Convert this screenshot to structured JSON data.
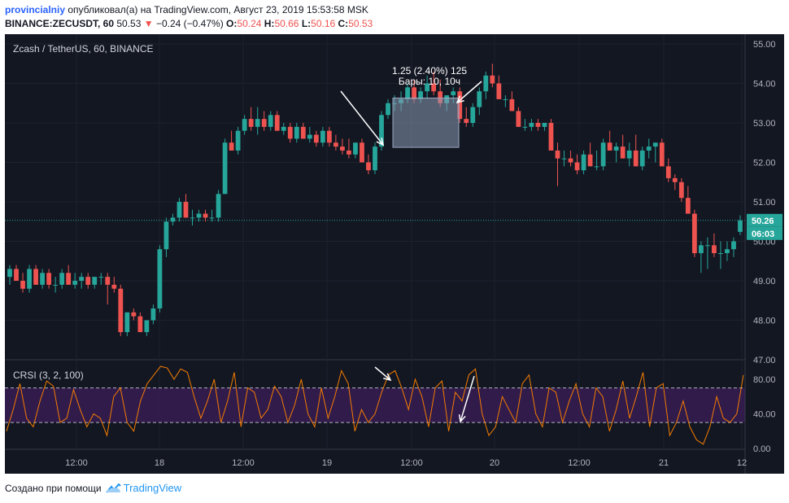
{
  "header": {
    "user": "provincialniy",
    "published_text": "опубликовал(а) на TradingView.com, Август 23, 2019 15:53:58 MSK",
    "symbol_line": "BINANCE:ZECUSDT, 60",
    "last": "50.53",
    "change": "−0.24 (−0.47%)",
    "o_label": "O:",
    "o": "50.24",
    "h_label": "H:",
    "h": "50.66",
    "l_label": "L:",
    "l": "50.16",
    "c_label": "C:",
    "c": "50.53"
  },
  "chart_data": {
    "type": "candlestick",
    "title": "Zcash / TetherUS, 60, BINANCE",
    "y_ticks": [
      "55.00",
      "54.00",
      "53.00",
      "52.00",
      "51.00",
      "50.00",
      "49.00",
      "48.00",
      "47.00"
    ],
    "ylim": [
      47,
      55.2
    ],
    "x_ticks": [
      "12:00",
      "18",
      "12:00",
      "19",
      "12:00",
      "20",
      "12:00",
      "21",
      "12"
    ],
    "price_label": "50.26",
    "countdown_label": "06:03",
    "current_price_line": 50.53,
    "measure_annotation": {
      "line1": "1.25 (2.40%) 125",
      "line2": "Бары: 10, 10ч"
    },
    "candles_ohlc": [
      [
        49.1,
        49.4,
        48.9,
        49.3
      ],
      [
        49.3,
        49.4,
        49.0,
        49.0
      ],
      [
        49.0,
        49.2,
        48.7,
        48.8
      ],
      [
        48.8,
        49.4,
        48.7,
        49.3
      ],
      [
        49.3,
        49.4,
        48.9,
        48.9
      ],
      [
        48.9,
        49.3,
        48.8,
        49.2
      ],
      [
        49.2,
        49.3,
        48.8,
        48.9
      ],
      [
        48.9,
        49.1,
        48.7,
        48.9
      ],
      [
        48.9,
        49.3,
        48.8,
        49.2
      ],
      [
        49.2,
        49.4,
        48.9,
        48.9
      ],
      [
        48.9,
        49.2,
        48.8,
        49.0
      ],
      [
        49.0,
        49.2,
        48.8,
        49.1
      ],
      [
        49.1,
        49.2,
        48.8,
        48.9
      ],
      [
        48.9,
        49.1,
        48.8,
        49.1
      ],
      [
        49.1,
        49.2,
        48.9,
        49.1
      ],
      [
        49.1,
        49.2,
        48.4,
        48.9
      ],
      [
        48.9,
        49.1,
        48.7,
        48.8
      ],
      [
        48.8,
        48.9,
        47.6,
        47.7
      ],
      [
        47.7,
        48.2,
        47.6,
        48.2
      ],
      [
        48.2,
        48.3,
        48.0,
        48.1
      ],
      [
        48.1,
        48.2,
        47.7,
        47.7
      ],
      [
        47.7,
        48.0,
        47.6,
        48.0
      ],
      [
        48.0,
        48.4,
        47.9,
        48.3
      ],
      [
        48.3,
        49.9,
        48.2,
        49.8
      ],
      [
        49.8,
        50.6,
        49.6,
        50.5
      ],
      [
        50.5,
        50.7,
        50.4,
        50.6
      ],
      [
        50.6,
        51.1,
        50.5,
        51.0
      ],
      [
        51.0,
        51.2,
        50.6,
        50.6
      ],
      [
        50.6,
        50.8,
        50.4,
        50.6
      ],
      [
        50.6,
        50.8,
        50.5,
        50.7
      ],
      [
        50.7,
        50.8,
        50.5,
        50.6
      ],
      [
        50.6,
        50.8,
        50.5,
        50.6
      ],
      [
        50.6,
        51.3,
        50.5,
        51.2
      ],
      [
        51.2,
        52.6,
        51.2,
        52.5
      ],
      [
        52.5,
        52.8,
        52.3,
        52.3
      ],
      [
        52.3,
        52.9,
        52.2,
        52.8
      ],
      [
        52.8,
        53.2,
        52.7,
        53.1
      ],
      [
        53.1,
        53.4,
        52.8,
        52.9
      ],
      [
        52.9,
        53.4,
        52.7,
        53.1
      ],
      [
        53.1,
        53.3,
        52.8,
        52.9
      ],
      [
        52.9,
        53.3,
        52.8,
        53.2
      ],
      [
        53.2,
        53.3,
        52.8,
        52.8
      ],
      [
        52.8,
        53.0,
        52.7,
        52.9
      ],
      [
        52.9,
        53.0,
        52.5,
        52.6
      ],
      [
        52.6,
        53.0,
        52.5,
        52.9
      ],
      [
        52.9,
        53.0,
        52.6,
        52.6
      ],
      [
        52.6,
        52.9,
        52.5,
        52.7
      ],
      [
        52.7,
        52.8,
        52.4,
        52.5
      ],
      [
        52.5,
        52.9,
        52.4,
        52.8
      ],
      [
        52.8,
        52.9,
        52.4,
        52.5
      ],
      [
        52.5,
        52.7,
        52.3,
        52.4
      ],
      [
        52.4,
        52.6,
        52.2,
        52.3
      ],
      [
        52.3,
        52.6,
        52.1,
        52.2
      ],
      [
        52.2,
        52.5,
        52.1,
        52.5
      ],
      [
        52.5,
        52.6,
        52.0,
        52.0
      ],
      [
        52.0,
        52.2,
        51.7,
        51.8
      ],
      [
        51.8,
        52.5,
        51.7,
        52.4
      ],
      [
        52.4,
        53.3,
        52.3,
        53.2
      ],
      [
        53.2,
        53.6,
        53.1,
        53.5
      ],
      [
        53.5,
        53.7,
        53.3,
        53.5
      ],
      [
        53.5,
        53.8,
        53.3,
        53.6
      ],
      [
        53.6,
        54.0,
        53.5,
        53.9
      ],
      [
        53.9,
        54.1,
        53.5,
        53.6
      ],
      [
        53.6,
        53.9,
        53.5,
        53.8
      ],
      [
        53.8,
        54.2,
        53.6,
        54.0
      ],
      [
        54.0,
        54.3,
        53.7,
        53.8
      ],
      [
        53.8,
        54.1,
        53.4,
        53.5
      ],
      [
        53.5,
        53.7,
        53.3,
        53.7
      ],
      [
        53.7,
        53.9,
        53.5,
        53.8
      ],
      [
        53.8,
        53.9,
        53.0,
        53.1
      ],
      [
        53.1,
        53.4,
        52.9,
        53.0
      ],
      [
        53.0,
        53.5,
        52.9,
        53.4
      ],
      [
        53.4,
        53.9,
        53.2,
        53.8
      ],
      [
        53.8,
        54.3,
        53.6,
        54.2
      ],
      [
        54.2,
        54.5,
        53.9,
        54.0
      ],
      [
        54.0,
        54.2,
        53.6,
        53.6
      ],
      [
        53.6,
        53.7,
        53.4,
        53.6
      ],
      [
        53.6,
        53.8,
        53.3,
        53.3
      ],
      [
        53.3,
        53.4,
        52.9,
        52.9
      ],
      [
        52.9,
        53.1,
        52.8,
        52.9
      ],
      [
        52.9,
        53.1,
        52.8,
        53.0
      ],
      [
        53.0,
        53.1,
        52.8,
        52.9
      ],
      [
        52.9,
        53.0,
        52.8,
        53.0
      ],
      [
        53.0,
        53.1,
        52.4,
        52.3
      ],
      [
        52.3,
        52.5,
        51.4,
        52.1
      ],
      [
        52.1,
        52.3,
        51.9,
        52.1
      ],
      [
        52.1,
        52.3,
        51.9,
        52.0
      ],
      [
        52.0,
        52.2,
        51.7,
        51.8
      ],
      [
        51.8,
        52.3,
        51.7,
        52.2
      ],
      [
        52.2,
        52.5,
        51.9,
        51.9
      ],
      [
        51.9,
        52.3,
        51.8,
        51.9
      ],
      [
        51.9,
        52.6,
        51.8,
        52.5
      ],
      [
        52.5,
        52.8,
        52.3,
        52.3
      ],
      [
        52.3,
        52.5,
        52.0,
        52.4
      ],
      [
        52.4,
        52.7,
        52.1,
        52.1
      ],
      [
        52.1,
        52.5,
        51.9,
        52.3
      ],
      [
        52.3,
        52.7,
        51.9,
        51.9
      ],
      [
        51.9,
        52.4,
        51.8,
        52.3
      ],
      [
        52.3,
        52.6,
        52.1,
        52.4
      ],
      [
        52.4,
        52.5,
        52.0,
        52.5
      ],
      [
        52.5,
        52.6,
        51.9,
        51.9
      ],
      [
        51.9,
        52.1,
        51.5,
        51.6
      ],
      [
        51.6,
        51.7,
        51.3,
        51.5
      ],
      [
        51.5,
        51.6,
        51.0,
        51.1
      ],
      [
        51.1,
        51.4,
        50.7,
        50.7
      ],
      [
        50.7,
        50.8,
        49.6,
        49.7
      ],
      [
        49.7,
        50.0,
        49.2,
        49.9
      ],
      [
        49.9,
        50.1,
        49.3,
        49.9
      ],
      [
        49.9,
        50.2,
        49.6,
        49.7
      ],
      [
        49.7,
        50.0,
        49.3,
        49.7
      ],
      [
        49.7,
        50.0,
        49.5,
        49.8
      ],
      [
        49.8,
        50.1,
        49.6,
        50.0
      ],
      [
        50.24,
        50.66,
        50.16,
        50.53
      ]
    ]
  },
  "crsi": {
    "label": "CRSI (3, 2, 100)",
    "y_ticks": [
      "80.00",
      "40.00",
      "0.00"
    ],
    "upper_band": 70,
    "lower_band": 30,
    "values": [
      20,
      45,
      75,
      35,
      25,
      55,
      78,
      72,
      30,
      35,
      68,
      45,
      25,
      40,
      35,
      15,
      60,
      70,
      30,
      20,
      55,
      75,
      85,
      95,
      93,
      80,
      92,
      88,
      60,
      35,
      55,
      80,
      30,
      55,
      88,
      25,
      70,
      65,
      35,
      45,
      72,
      60,
      30,
      50,
      80,
      40,
      25,
      70,
      35,
      60,
      90,
      75,
      20,
      45,
      30,
      40,
      65,
      85,
      90,
      70,
      45,
      80,
      60,
      25,
      70,
      78,
      20,
      65,
      55,
      85,
      92,
      40,
      15,
      25,
      60,
      45,
      30,
      75,
      85,
      40,
      25,
      70,
      65,
      30,
      55,
      75,
      40,
      25,
      70,
      60,
      20,
      45,
      78,
      35,
      60,
      88,
      25,
      70,
      75,
      15,
      30,
      55,
      25,
      10,
      5,
      25,
      60,
      35,
      30,
      40,
      85
    ]
  },
  "footer": {
    "created_text": "Создано при помощи",
    "logo_text": "TradingView"
  },
  "colors": {
    "background": "#131722",
    "up": "#26a69a",
    "down": "#ef5350",
    "crsi_line": "#f57c00",
    "crsi_band": "#3c1e5a",
    "price_tag": "#26a69a"
  }
}
